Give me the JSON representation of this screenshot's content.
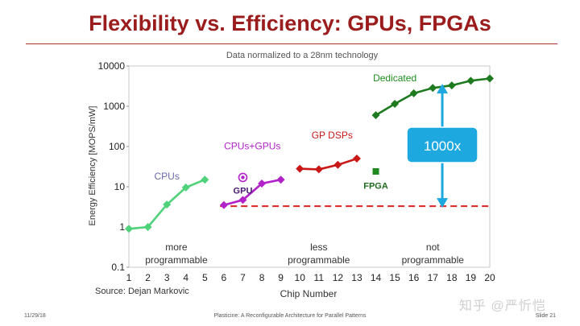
{
  "slide": {
    "title": "Flexibility vs. Efficiency: GPUs, FPGAs",
    "source": "Source: Dejan Markovic",
    "footer_date": "11/29/18",
    "footer_center": "Plasticine: A Reconfigurable Architecture for Parallel Patterns",
    "footer_slide": "Slide 21",
    "watermark": "知乎 @严忻恺"
  },
  "chart_data": {
    "type": "line",
    "subtitle": "Data normalized to a 28nm technology",
    "xlabel": "Chip Number",
    "ylabel": "Energy Efficiency [MOPS/mW]",
    "y_scale": "log",
    "ylim": [
      0.1,
      10000
    ],
    "xlim": [
      1,
      20
    ],
    "x_ticks": [
      1,
      2,
      3,
      4,
      5,
      6,
      7,
      8,
      9,
      10,
      11,
      12,
      13,
      14,
      15,
      16,
      17,
      18,
      19,
      20
    ],
    "y_ticks": [
      {
        "value": 0.1,
        "label": "0.1"
      },
      {
        "value": 1,
        "label": "1"
      },
      {
        "value": 10,
        "label": "10"
      },
      {
        "value": 100,
        "label": "100"
      },
      {
        "value": 1000,
        "label": "1000"
      },
      {
        "value": 10000,
        "label": "10000"
      }
    ],
    "series": [
      {
        "name": "CPUs",
        "color": "#4fd27a",
        "marker": "diamond",
        "x": [
          1,
          2,
          3,
          4,
          5
        ],
        "values": [
          0.9,
          1.0,
          3.6,
          9.6,
          15
        ]
      },
      {
        "name": "CPUs+GPUs",
        "color": "#b123c9",
        "marker": "diamond",
        "x": [
          6,
          7,
          8,
          9
        ],
        "values": [
          3.5,
          4.7,
          12,
          15
        ]
      },
      {
        "name": "GP DSPs",
        "color": "#c81818",
        "marker": "diamond",
        "x": [
          10,
          11,
          12,
          13
        ],
        "values": [
          28,
          27,
          35,
          50
        ]
      },
      {
        "name": "Dedicated",
        "color": "#1e7a1e",
        "marker": "diamond",
        "x": [
          14,
          15,
          16,
          17,
          18,
          19,
          20
        ],
        "values": [
          600,
          1150,
          2100,
          2850,
          3300,
          4300,
          4900
        ]
      }
    ],
    "points": [
      {
        "name": "GPU",
        "x": 7,
        "value": 17,
        "color": "#b123c9",
        "marker": "target"
      },
      {
        "name": "FPGA",
        "x": 14,
        "value": 24,
        "color": "#1e8a1e",
        "marker": "square"
      }
    ],
    "series_labels": [
      {
        "text": "CPUs",
        "color": "#6a6aaa",
        "x": 3.0,
        "value": 15
      },
      {
        "text": "CPUs+GPUs",
        "color": "#b123c9",
        "x": 7.5,
        "value": 85
      },
      {
        "text": "GP DSPs",
        "color": "#c81818",
        "x": 11.7,
        "value": 160
      },
      {
        "text": "Dedicated",
        "color": "#1e8a1e",
        "x": 15.0,
        "value": 4200
      },
      {
        "text": "GPU",
        "color": "#4a1870",
        "x": 7.0,
        "value": 6.8
      },
      {
        "text": "FPGA",
        "color": "#1e6a1e",
        "x": 14.0,
        "value": 9.0
      }
    ],
    "reference_line": {
      "value": 3.3,
      "x_from": 5.8,
      "x_to": 20,
      "color": "#dd2222",
      "style": "dashed"
    },
    "annotation": {
      "text": "1000x",
      "x": 17.5,
      "from": 3.3,
      "to": 3300,
      "box_value": 100,
      "fill": "#1ea8e0",
      "color": "#ffffff"
    },
    "region_labels": [
      {
        "lines": [
          "more",
          "programmable"
        ],
        "x": 3.5
      },
      {
        "lines": [
          "less",
          "programmable"
        ],
        "x": 11.0
      },
      {
        "lines": [
          "not",
          "programmable"
        ],
        "x": 17.0
      }
    ]
  }
}
